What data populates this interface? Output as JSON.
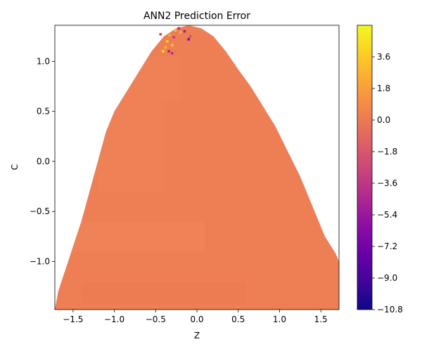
{
  "chart_data": {
    "type": "heatmap",
    "title": "ANN2 Prediction Error",
    "xlabel": "Z",
    "ylabel": "C",
    "xlim": [
      -1.72,
      1.72
    ],
    "ylim": [
      -1.48,
      1.36
    ],
    "x_ticks": [
      -1.5,
      -1.0,
      -0.5,
      0.0,
      0.5,
      1.0,
      1.5
    ],
    "y_ticks": [
      -1.0,
      -0.5,
      0.0,
      0.5,
      1.0
    ],
    "x_tick_labels": [
      "−1.5",
      "−1.0",
      "−0.5",
      "0.0",
      "0.5",
      "1.0",
      "1.5"
    ],
    "y_tick_labels": [
      "−1.0",
      "−0.5",
      "0.0",
      "0.5",
      "1.0"
    ],
    "colorbar": {
      "colormap": "plasma",
      "vmin": -10.8,
      "vmax": 5.4,
      "ticks": [
        3.6,
        1.8,
        0.0,
        -1.8,
        -3.6,
        -5.4,
        -7.2,
        -9.0,
        -10.8
      ],
      "tick_labels": [
        "3.6",
        "1.8",
        "0.0",
        "−1.8",
        "−3.6",
        "−5.4",
        "−7.2",
        "−9.0",
        "−10.8"
      ]
    },
    "colors": {
      "base_region": "#ee7f55",
      "outliers_high": "#fcd225",
      "outliers_low": "#a0229b"
    },
    "region_boundary": [
      [
        -1.72,
        -1.48
      ],
      [
        -1.68,
        -1.3
      ],
      [
        -1.6,
        -1.1
      ],
      [
        -1.5,
        -0.85
      ],
      [
        -1.4,
        -0.6
      ],
      [
        -1.3,
        -0.3
      ],
      [
        -1.2,
        0.0
      ],
      [
        -1.1,
        0.3
      ],
      [
        -1.0,
        0.5
      ],
      [
        -0.85,
        0.7
      ],
      [
        -0.7,
        0.9
      ],
      [
        -0.55,
        1.1
      ],
      [
        -0.4,
        1.25
      ],
      [
        -0.25,
        1.33
      ],
      [
        -0.1,
        1.36
      ],
      [
        0.05,
        1.33
      ],
      [
        0.2,
        1.25
      ],
      [
        0.35,
        1.1
      ],
      [
        0.5,
        0.92
      ],
      [
        0.65,
        0.75
      ],
      [
        0.8,
        0.55
      ],
      [
        0.95,
        0.35
      ],
      [
        1.1,
        0.1
      ],
      [
        1.25,
        -0.15
      ],
      [
        1.4,
        -0.45
      ],
      [
        1.55,
        -0.75
      ],
      [
        1.68,
        -0.92
      ],
      [
        1.72,
        -1.0
      ],
      [
        1.72,
        -1.48
      ]
    ],
    "outlier_points": [
      {
        "x": -0.36,
        "y": 1.2,
        "v": 4.2
      },
      {
        "x": -0.3,
        "y": 1.16,
        "v": 3.2
      },
      {
        "x": -0.38,
        "y": 1.14,
        "v": 2.6
      },
      {
        "x": -0.33,
        "y": 1.26,
        "v": 2.2
      },
      {
        "x": -0.26,
        "y": 1.31,
        "v": 3.0
      },
      {
        "x": -0.2,
        "y": 1.29,
        "v": 2.5
      },
      {
        "x": -0.41,
        "y": 1.1,
        "v": 4.5
      },
      {
        "x": -0.22,
        "y": 1.33,
        "v": -4.2
      },
      {
        "x": -0.15,
        "y": 1.3,
        "v": -5.0
      },
      {
        "x": -0.1,
        "y": 1.22,
        "v": -6.0
      },
      {
        "x": -0.28,
        "y": 1.24,
        "v": -3.2
      },
      {
        "x": -0.34,
        "y": 1.1,
        "v": -4.6
      },
      {
        "x": -0.44,
        "y": 1.27,
        "v": -2.6
      },
      {
        "x": -0.3,
        "y": 1.08,
        "v": -3.8
      },
      {
        "x": -0.08,
        "y": 1.25,
        "v": -2.0
      }
    ]
  }
}
